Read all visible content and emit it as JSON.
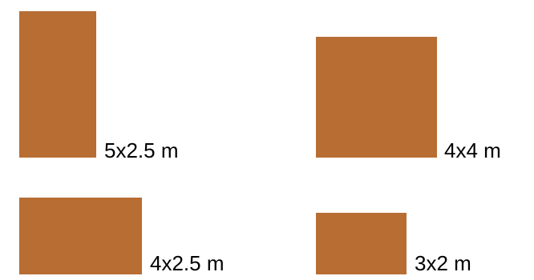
{
  "colors": {
    "background": "#ffffff",
    "rect_fill": "#b86d33",
    "label_text": "#000000"
  },
  "shapes": [
    {
      "label": "5x2.5 m"
    },
    {
      "label": "4x4 m"
    },
    {
      "label": "4x2.5 m"
    },
    {
      "label": "3x2 m"
    }
  ]
}
